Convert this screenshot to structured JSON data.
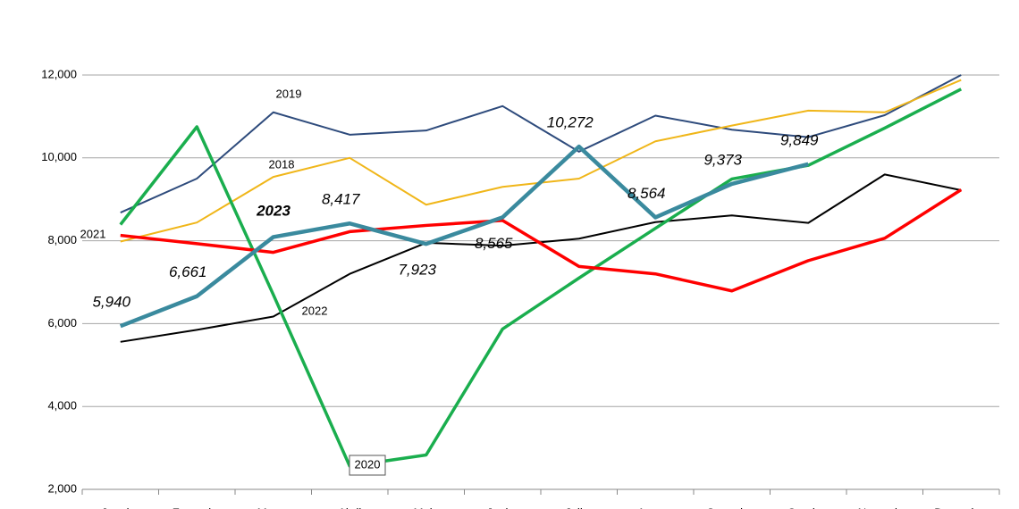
{
  "chart_data": {
    "type": "line",
    "categories": [
      "Janeiro",
      "Fevereiro",
      "Março",
      "Abril",
      "Maio",
      "Junho",
      "Julho",
      "Agosto",
      "Setembro",
      "Outubro",
      "Novembro",
      "Dezembro"
    ],
    "ylim": [
      2000,
      12000
    ],
    "yticks": [
      {
        "value": 2000,
        "label": "2,000"
      },
      {
        "value": 4000,
        "label": "4,000"
      },
      {
        "value": 6000,
        "label": "6,000"
      },
      {
        "value": 8000,
        "label": "8,000"
      },
      {
        "value": 10000,
        "label": "10,000"
      },
      {
        "value": 12000,
        "label": "12,000"
      }
    ],
    "grid": true,
    "series": [
      {
        "name": "2019",
        "color": "#2e4b7c",
        "values": [
          8680,
          9500,
          11100,
          10560,
          10660,
          11250,
          10150,
          11020,
          10680,
          10500,
          11030,
          12000
        ]
      },
      {
        "name": "2018",
        "color": "#f0b619",
        "values": [
          7980,
          8440,
          9540,
          10000,
          8870,
          9300,
          9500,
          10400,
          10780,
          11140,
          11100,
          11880
        ]
      },
      {
        "name": "2022",
        "color": "#000000",
        "values": [
          5560,
          5850,
          6170,
          7200,
          7950,
          7880,
          8050,
          8450,
          8610,
          8430,
          9600,
          9220
        ]
      },
      {
        "name": "2020",
        "color": "#1aae4e",
        "values": [
          8390,
          10750,
          6700,
          2560,
          2830,
          5870,
          7100,
          8300,
          9490,
          9820,
          10720,
          11660
        ]
      },
      {
        "name": "2021",
        "color": "#ff0000",
        "values": [
          8130,
          7930,
          7720,
          8220,
          8370,
          8490,
          7380,
          7200,
          6790,
          7520,
          8060,
          9230
        ]
      },
      {
        "name": "2023",
        "color": "#3a8a9e",
        "values": [
          5940,
          6661,
          8090,
          8417,
          7923,
          8565,
          10272,
          8564,
          9373,
          9849,
          null,
          null
        ],
        "value_labels": [
          "5,940",
          "6,661",
          null,
          "8,417",
          "7,923",
          "8,565",
          "10,272",
          "8,564",
          "9,373",
          "9,849",
          null,
          null
        ]
      }
    ]
  }
}
